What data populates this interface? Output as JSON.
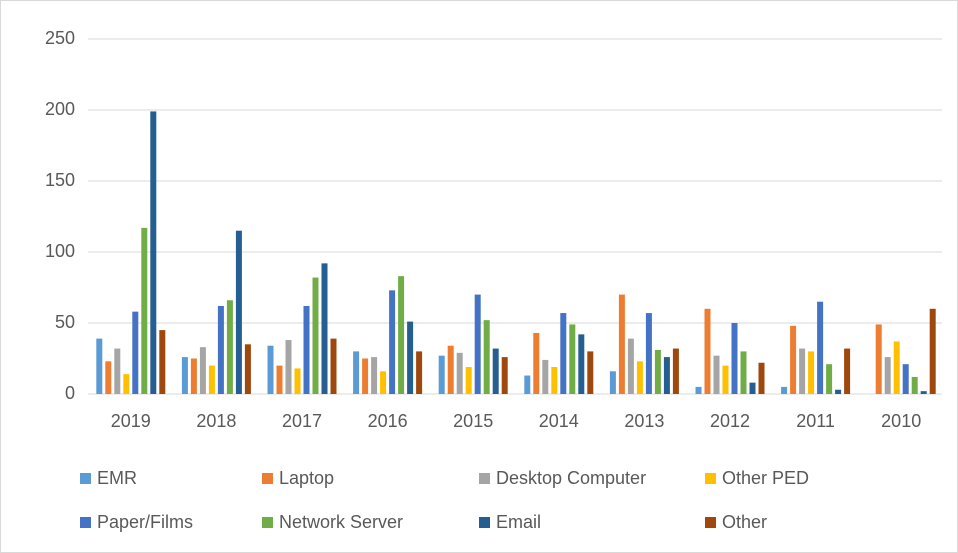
{
  "chart_data": {
    "type": "bar",
    "categories": [
      "2019",
      "2018",
      "2017",
      "2016",
      "2015",
      "2014",
      "2013",
      "2012",
      "2011",
      "2010"
    ],
    "series": [
      {
        "name": "EMR",
        "color": "#5b9bd5",
        "values": [
          39,
          26,
          34,
          30,
          27,
          13,
          16,
          5,
          5,
          0
        ]
      },
      {
        "name": "Laptop",
        "color": "#ed7d31",
        "values": [
          23,
          25,
          20,
          25,
          34,
          43,
          70,
          60,
          48,
          49
        ]
      },
      {
        "name": "Desktop Computer",
        "color": "#a5a5a5",
        "values": [
          32,
          33,
          38,
          26,
          29,
          24,
          39,
          27,
          32,
          26
        ]
      },
      {
        "name": "Other PED",
        "color": "#ffc000",
        "values": [
          14,
          20,
          18,
          16,
          19,
          19,
          23,
          20,
          30,
          37
        ]
      },
      {
        "name": "Paper/Films",
        "color": "#4472c4",
        "values": [
          58,
          62,
          62,
          73,
          70,
          57,
          57,
          50,
          65,
          21
        ]
      },
      {
        "name": "Network Server",
        "color": "#70ad47",
        "values": [
          117,
          66,
          82,
          83,
          52,
          49,
          31,
          30,
          21,
          12
        ]
      },
      {
        "name": "Email",
        "color": "#255e91",
        "values": [
          199,
          115,
          92,
          51,
          32,
          42,
          26,
          8,
          3,
          2
        ]
      },
      {
        "name": "Other",
        "color": "#9e480e",
        "values": [
          45,
          35,
          39,
          30,
          26,
          30,
          32,
          22,
          32,
          60
        ]
      }
    ],
    "ylim": [
      0,
      250
    ],
    "yticks": [
      0,
      50,
      100,
      150,
      200,
      250
    ],
    "grid": true,
    "legend": "bottom"
  }
}
